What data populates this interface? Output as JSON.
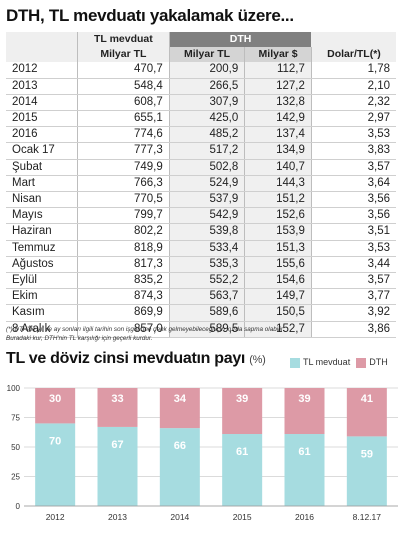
{
  "title": "DTH, TL mevduatı yakalamak üzere...",
  "table": {
    "headers": {
      "tl": [
        "TL mevduat",
        "Milyar TL"
      ],
      "dth": "DTH",
      "dth_tl": "Milyar TL",
      "dth_usd": "Milyar $",
      "rate": "Dolar/TL(*)"
    },
    "rows": [
      {
        "label": "2012",
        "tl": "470,7",
        "dth_tl": "200,9",
        "usd": "112,7",
        "rate": "1,78"
      },
      {
        "label": "2013",
        "tl": "548,4",
        "dth_tl": "266,5",
        "usd": "127,2",
        "rate": "2,10"
      },
      {
        "label": "2014",
        "tl": "608,7",
        "dth_tl": "307,9",
        "usd": "132,8",
        "rate": "2,32"
      },
      {
        "label": "2015",
        "tl": "655,1",
        "dth_tl": "425,0",
        "usd": "142,9",
        "rate": "2,97"
      },
      {
        "label": "2016",
        "tl": "774,6",
        "dth_tl": "485,2",
        "usd": "137,4",
        "rate": "3,53"
      },
      {
        "label": "Ocak 17",
        "tl": "777,3",
        "dth_tl": "517,2",
        "usd": "134,9",
        "rate": "3,83"
      },
      {
        "label": "Şubat",
        "tl": "749,9",
        "dth_tl": "502,8",
        "usd": "140,7",
        "rate": "3,57"
      },
      {
        "label": "Mart",
        "tl": "766,3",
        "dth_tl": "524,9",
        "usd": "144,3",
        "rate": "3,64"
      },
      {
        "label": "Nisan",
        "tl": "770,5",
        "dth_tl": "537,9",
        "usd": "151,2",
        "rate": "3,56"
      },
      {
        "label": "Mayıs",
        "tl": "799,7",
        "dth_tl": "542,9",
        "usd": "152,6",
        "rate": "3,56"
      },
      {
        "label": "Haziran",
        "tl": "802,2",
        "dth_tl": "539,8",
        "usd": "153,9",
        "rate": "3,51"
      },
      {
        "label": "Temmuz",
        "tl": "818,9",
        "dth_tl": "533,4",
        "usd": "151,3",
        "rate": "3,53"
      },
      {
        "label": "Ağustos",
        "tl": "817,3",
        "dth_tl": "535,3",
        "usd": "155,6",
        "rate": "3,44"
      },
      {
        "label": "Eylül",
        "tl": "835,2",
        "dth_tl": "552,2",
        "usd": "154,6",
        "rate": "3,57"
      },
      {
        "label": "Ekim",
        "tl": "874,3",
        "dth_tl": "563,7",
        "usd": "149,7",
        "rate": "3,77"
      },
      {
        "label": "Kasım",
        "tl": "869,9",
        "dth_tl": "589,6",
        "usd": "150,5",
        "rate": "3,92"
      },
      {
        "label": "8 Aralık",
        "tl": "857,0",
        "dth_tl": "589,5",
        "usd": "152,7",
        "rate": "3,86"
      }
    ]
  },
  "footnote": {
    "line1": "(*) DTH'de yıl ve ay sonları ilgili tarihin son işgününe denk gelmeyebileceği için kurda sapma olabilir.",
    "line2": "Buradaki kur, DTH'nin TL karşılığı için geçerli kurdur."
  },
  "chart_title": "TL ve döviz cinsi mevduatın payı",
  "chart_unit": "(%)",
  "chart_data": {
    "type": "bar",
    "stacked": true,
    "title": "TL ve döviz cinsi mevduatın payı (%)",
    "categories": [
      "2012",
      "2013",
      "2014",
      "2015",
      "2016",
      "8.12.17"
    ],
    "series": [
      {
        "name": "TL mevduat",
        "values": [
          70,
          67,
          66,
          61,
          61,
          59
        ],
        "color": "#a6dce0"
      },
      {
        "name": "DTH",
        "values": [
          30,
          33,
          34,
          39,
          39,
          41
        ],
        "color": "#dd9aa6"
      }
    ],
    "ylim": [
      0,
      100
    ],
    "yticks": [
      "0",
      "25",
      "50",
      "75",
      "100"
    ],
    "legend": "top-right",
    "grid": true
  },
  "colors": {
    "tl": "#a6dce0",
    "dth": "#dd9aa6",
    "dth_header": "#808080"
  }
}
